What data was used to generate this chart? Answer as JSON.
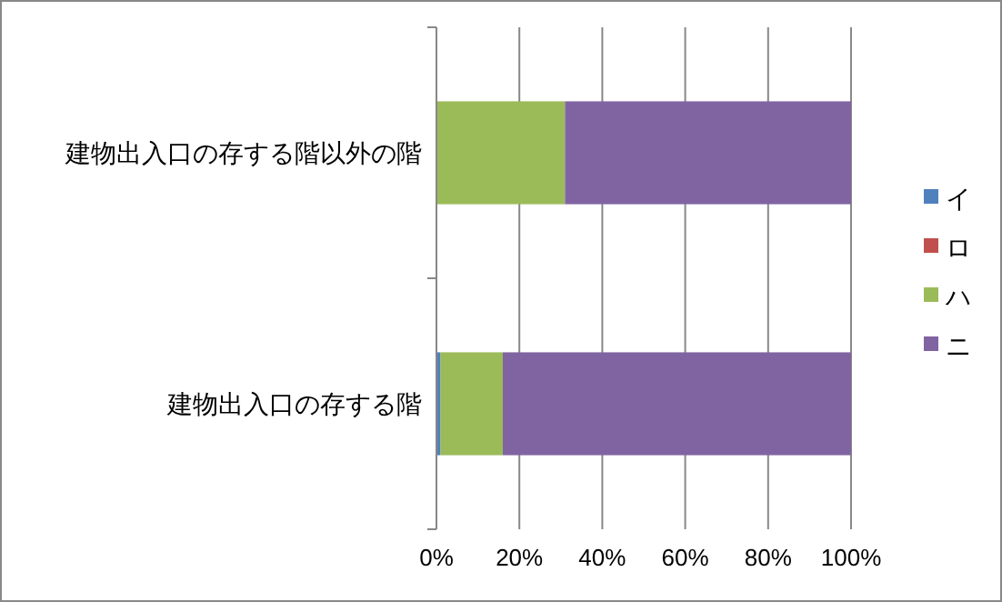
{
  "chart_data": {
    "type": "bar",
    "orientation": "horizontal",
    "stacked": true,
    "categories": [
      "建物出入口の存する階以外の階",
      "建物出入口の存する階"
    ],
    "series": [
      {
        "name": "イ",
        "color": "#4f81bd",
        "values": [
          0,
          1
        ]
      },
      {
        "name": "ロ",
        "color": "#c0504d",
        "values": [
          0,
          0
        ]
      },
      {
        "name": "ハ",
        "color": "#9bbb59",
        "values": [
          31,
          15
        ]
      },
      {
        "name": "ニ",
        "color": "#8064a2",
        "values": [
          69,
          84
        ]
      }
    ],
    "xlim": [
      0,
      100
    ],
    "xticks": [
      {
        "value": 0,
        "label": "0%"
      },
      {
        "value": 20,
        "label": "20%"
      },
      {
        "value": 40,
        "label": "40%"
      },
      {
        "value": 60,
        "label": "60%"
      },
      {
        "value": 80,
        "label": "80%"
      },
      {
        "value": 100,
        "label": "100%"
      }
    ],
    "grid": "x",
    "legend": "right"
  }
}
